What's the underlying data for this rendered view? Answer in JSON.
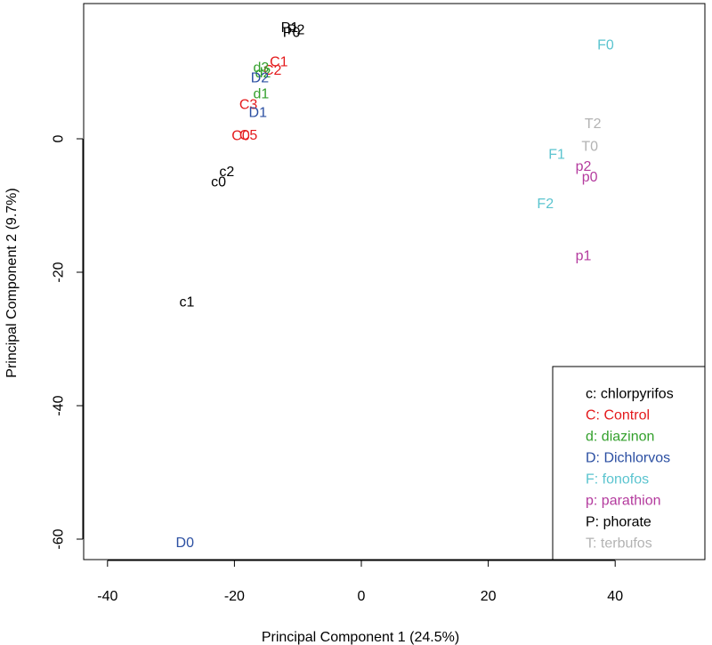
{
  "chart_data": {
    "type": "scatter",
    "title": "",
    "xlabel": "Principal Component 1 (24.5%)",
    "ylabel": "Principal Component 2 (9.7%)",
    "xlim": [
      -44,
      52
    ],
    "ylim": [
      -63,
      20
    ],
    "xticks": [
      -40,
      -20,
      0,
      20,
      40
    ],
    "yticks": [
      -60,
      -40,
      -20,
      0
    ],
    "grid": false,
    "legend_position": "bottom-right",
    "groups": [
      {
        "code": "c",
        "label": "c: chlorpyrifos",
        "color": "#000000"
      },
      {
        "code": "C",
        "label": "C: Control",
        "color": "#e41a1c"
      },
      {
        "code": "d",
        "label": "d: diazinon",
        "color": "#33a02c"
      },
      {
        "code": "D",
        "label": "D: Dichlorvos",
        "color": "#2b4fa2"
      },
      {
        "code": "F",
        "label": "F: fonofos",
        "color": "#5bc4cf"
      },
      {
        "code": "p",
        "label": "p: parathion",
        "color": "#b43b9e"
      },
      {
        "code": "P",
        "label": "P: phorate",
        "color": "#000000"
      },
      {
        "code": "T",
        "label": "T: terbufos",
        "color": "#b3b3b3"
      }
    ],
    "points": [
      {
        "label": "P1",
        "group": "P",
        "x": -11.3,
        "y": 16.6
      },
      {
        "label": "P2",
        "group": "P",
        "x": -10.3,
        "y": 16.3
      },
      {
        "label": "P0",
        "group": "P",
        "x": -11.0,
        "y": 15.9
      },
      {
        "label": "C1",
        "group": "C",
        "x": -13.0,
        "y": 11.5
      },
      {
        "label": "C2",
        "group": "C",
        "x": -14.0,
        "y": 10.2
      },
      {
        "label": "d3",
        "group": "d",
        "x": -15.8,
        "y": 10.6
      },
      {
        "label": "d2",
        "group": "d",
        "x": -15.5,
        "y": 9.8
      },
      {
        "label": "D2",
        "group": "D",
        "x": -16.0,
        "y": 9.1
      },
      {
        "label": "d1",
        "group": "d",
        "x": -15.8,
        "y": 6.7
      },
      {
        "label": "C3",
        "group": "C",
        "x": -17.8,
        "y": 5.1
      },
      {
        "label": "D1",
        "group": "D",
        "x": -16.3,
        "y": 3.9
      },
      {
        "label": "C0",
        "group": "C",
        "x": -19.0,
        "y": 0.4
      },
      {
        "label": "C5",
        "group": "C",
        "x": -17.8,
        "y": 0.5
      },
      {
        "label": "c2",
        "group": "c",
        "x": -21.2,
        "y": -5.0
      },
      {
        "label": "c0",
        "group": "c",
        "x": -22.5,
        "y": -6.5
      },
      {
        "label": "c1",
        "group": "c",
        "x": -27.5,
        "y": -24.5
      },
      {
        "label": "D0",
        "group": "D",
        "x": -27.8,
        "y": -60.6
      },
      {
        "label": "F0",
        "group": "F",
        "x": 38.5,
        "y": 14.0
      },
      {
        "label": "T2",
        "group": "T",
        "x": 36.5,
        "y": 2.2
      },
      {
        "label": "T0",
        "group": "T",
        "x": 36.0,
        "y": -1.2
      },
      {
        "label": "F1",
        "group": "F",
        "x": 30.8,
        "y": -2.4
      },
      {
        "label": "p2",
        "group": "p",
        "x": 35.0,
        "y": -4.2
      },
      {
        "label": "p0",
        "group": "p",
        "x": 36.0,
        "y": -5.8
      },
      {
        "label": "F2",
        "group": "F",
        "x": 29.0,
        "y": -9.8
      },
      {
        "label": "p1",
        "group": "p",
        "x": 35.0,
        "y": -17.6
      }
    ]
  }
}
